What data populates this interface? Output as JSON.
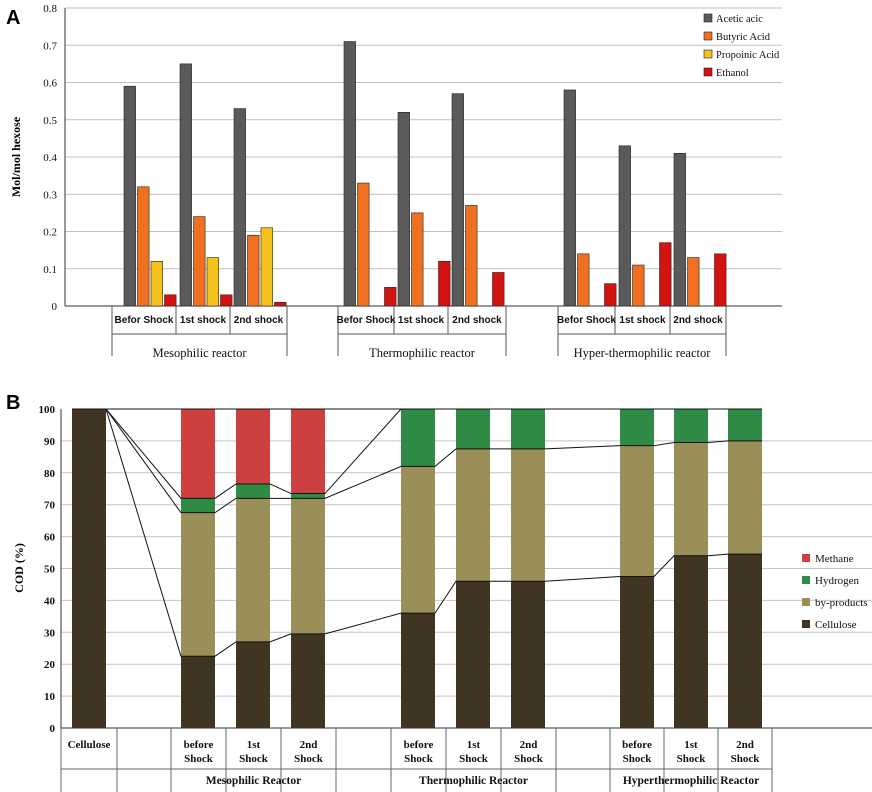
{
  "panels": {
    "a_letter": "A",
    "b_letter": "B"
  },
  "chart_data": [
    {
      "type": "bar",
      "title": "",
      "ylabel": "Mol/mol  hexose",
      "xlabel": "",
      "ylim": [
        0,
        0.8
      ],
      "yticks": [
        "0",
        "0.1",
        "0.2",
        "0.3",
        "0.4",
        "0.5",
        "0.6",
        "0.7",
        "0.8"
      ],
      "legend_position": "top-right",
      "groups": [
        {
          "label": "Mesophilic reactor",
          "categories": [
            "Befor Shock",
            "1st shock",
            "2nd shock"
          ]
        },
        {
          "label": "Thermophilic reactor",
          "categories": [
            "Befor Shock",
            "1st shock",
            "2nd shock"
          ]
        },
        {
          "label": "Hyper-thermophilic reactor",
          "categories": [
            "Befor Shock",
            "1st shock",
            "2nd shock"
          ]
        }
      ],
      "series": [
        {
          "name": "Acetic acic",
          "color": "#5a5a5a",
          "values": [
            0.59,
            0.65,
            0.53,
            0.71,
            0.52,
            0.57,
            0.58,
            0.43,
            0.41
          ]
        },
        {
          "name": "Butyric Acid",
          "color": "#f07020",
          "values": [
            0.32,
            0.24,
            0.19,
            0.33,
            0.25,
            0.27,
            0.14,
            0.11,
            0.13
          ]
        },
        {
          "name": "Propoinic Acid",
          "color": "#f4c21a",
          "values": [
            0.12,
            0.13,
            0.21,
            0,
            0,
            0,
            0,
            0,
            0
          ]
        },
        {
          "name": "Ethanol",
          "color": "#d41212",
          "values": [
            0.03,
            0.03,
            0.01,
            0.05,
            0.12,
            0.09,
            0.06,
            0.17,
            0.14
          ]
        }
      ]
    },
    {
      "type": "bar",
      "stacked": true,
      "title": "",
      "ylabel": "COD (%)",
      "xlabel": "",
      "ylim": [
        0,
        100
      ],
      "yticks": [
        "0",
        "10",
        "20",
        "30",
        "40",
        "50",
        "60",
        "70",
        "80",
        "90",
        "100"
      ],
      "legend_position": "right",
      "first_category": {
        "label": "Cellulose",
        "lines": [
          "Cellulose"
        ]
      },
      "groups": [
        {
          "label": "Mesophilic Reactor",
          "categories": [
            {
              "lines": [
                "before",
                "Shock"
              ]
            },
            {
              "lines": [
                "1st",
                "Shock"
              ]
            },
            {
              "lines": [
                "2nd",
                "Shock"
              ]
            }
          ]
        },
        {
          "label": "Thermophilic Reactor",
          "categories": [
            {
              "lines": [
                "before",
                "Shock"
              ]
            },
            {
              "lines": [
                "1st",
                "Shock"
              ]
            },
            {
              "lines": [
                "2nd",
                "Shock"
              ]
            }
          ]
        },
        {
          "label": "Hyperthermophilic Reactor",
          "categories": [
            {
              "lines": [
                "before",
                "Shock"
              ]
            },
            {
              "lines": [
                "1st",
                "Shock"
              ]
            },
            {
              "lines": [
                "2nd",
                "Shock"
              ]
            }
          ]
        }
      ],
      "series": [
        {
          "name": "Cellulose",
          "color": "#3f3522",
          "values": [
            100,
            22.5,
            27,
            29.5,
            36,
            46,
            46,
            47.5,
            54,
            54.5
          ]
        },
        {
          "name": "by-products",
          "color": "#9b8f59",
          "values": [
            0,
            45,
            45,
            42.5,
            46,
            41.5,
            41.5,
            41,
            35.5,
            35.5
          ]
        },
        {
          "name": "Hydrogen",
          "color": "#2e8a45",
          "values": [
            0,
            4.5,
            4.5,
            1.5,
            18,
            12.5,
            12.5,
            11.5,
            10.5,
            10
          ]
        },
        {
          "name": "Methane",
          "color": "#cc4040",
          "values": [
            0,
            28,
            23.5,
            26.5,
            0,
            0,
            0,
            0,
            0,
            0
          ]
        }
      ],
      "legend_order": [
        "Methane",
        "Hydrogen",
        "by-products",
        "Cellulose"
      ]
    }
  ]
}
